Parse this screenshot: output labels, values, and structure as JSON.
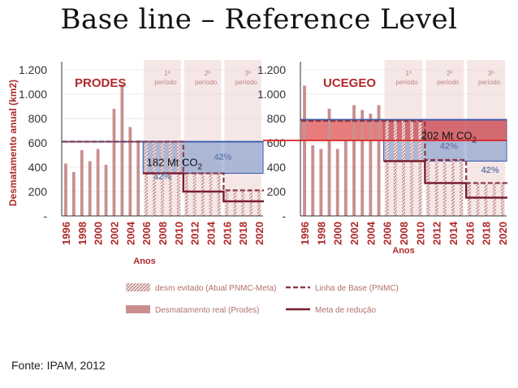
{
  "title": "Base line – Reference Level",
  "source": "Fonte: IPAM, 2012",
  "shared": {
    "ylabel": "Desmatamento anual (km2)",
    "xlabel": "Anos",
    "y_tick_labels": [
      "1.200",
      "1.000",
      "800",
      "600",
      "400",
      "200",
      "-"
    ],
    "year_tick_labels": [
      "1996",
      "1998",
      "2000",
      "2002",
      "2004",
      "2006",
      "2008",
      "2010",
      "2012",
      "2014",
      "2016",
      "2018",
      "2020"
    ],
    "period_labels": [
      {
        "line1": "1º",
        "line2": "período"
      },
      {
        "line1": "2º",
        "line2": "período"
      },
      {
        "line1": "3º",
        "line2": "período"
      }
    ],
    "colors": {
      "bar": "#c98f8f",
      "hatch": "#b07070",
      "baseline_dash": "#8b3a4a",
      "target": "#7a1e2e",
      "blue_box": "#6f8fc9",
      "red_box": "#e05050",
      "blue_line": "#3355aa",
      "red_line": "#dd2222",
      "period_bg": "#f6e7e7",
      "tick_red": "#b02a2a"
    }
  },
  "legend": {
    "items": [
      {
        "label": "desm evitado (Atual PNMC-Meta)",
        "swatch": "hatched-bar"
      },
      {
        "label": "Linha de Base (PNMC)",
        "swatch": "dashed-line"
      },
      {
        "label": "Desmatamento real (Prodes)",
        "swatch": "bar"
      },
      {
        "label": "Meta de redução",
        "swatch": "solid-line"
      }
    ]
  },
  "chart_data": [
    {
      "type": "bar",
      "title": "PRODES",
      "ylim": [
        0,
        1200
      ],
      "years": [
        1996,
        1997,
        1998,
        1999,
        2000,
        2001,
        2002,
        2003,
        2004,
        2005,
        2006,
        2007,
        2008,
        2009,
        2010,
        2011,
        2012,
        2013,
        2014,
        2015,
        2016,
        2017,
        2018,
        2019,
        2020
      ],
      "actual": [
        430,
        360,
        540,
        450,
        550,
        420,
        880,
        1080,
        730,
        620
      ],
      "baseline": {
        "years": [
          1996,
          2005,
          2006,
          2010,
          2011,
          2015,
          2016,
          2020
        ],
        "values": [
          610,
          610,
          610,
          610,
          350,
          350,
          210,
          210
        ]
      },
      "target": {
        "years": [
          2006,
          2010,
          2011,
          2015,
          2016,
          2020
        ],
        "values": [
          350,
          350,
          200,
          200,
          120,
          120
        ]
      },
      "reference_line": 610,
      "annotations": [
        {
          "text": "42%",
          "x": 2008.0,
          "y": 300
        },
        {
          "text": "182 Mt CO",
          "sub": "2",
          "x": 2009.5,
          "y": 410
        },
        {
          "text": "42%",
          "x": 2015.5,
          "y": 460
        }
      ]
    },
    {
      "type": "bar",
      "title": "UCEGEO",
      "ylim": [
        0,
        1200
      ],
      "years": [
        1996,
        1997,
        1998,
        1999,
        2000,
        2001,
        2002,
        2003,
        2004,
        2005,
        2006,
        2007,
        2008,
        2009,
        2010,
        2011,
        2012,
        2013,
        2014,
        2015,
        2016,
        2017,
        2018,
        2019,
        2020
      ],
      "actual": [
        1070,
        580,
        550,
        880,
        550,
        640,
        910,
        870,
        840,
        910
      ],
      "baseline": {
        "years": [
          1996,
          2005,
          2006,
          2010,
          2011,
          2015,
          2016,
          2020
        ],
        "values": [
          780,
          780,
          780,
          780,
          460,
          460,
          270,
          270
        ]
      },
      "target": {
        "years": [
          2006,
          2010,
          2011,
          2015,
          2016,
          2020
        ],
        "values": [
          450,
          450,
          270,
          270,
          150,
          150
        ]
      },
      "reference_line": 790,
      "red_reference_line": 620,
      "annotations": [
        {
          "text": "202 Mt CO",
          "sub": "2",
          "x": 2013.5,
          "y": 630
        },
        {
          "text": "42%",
          "x": 2013.5,
          "y": 550
        },
        {
          "text": "42%",
          "x": 2018.5,
          "y": 355
        }
      ]
    }
  ]
}
